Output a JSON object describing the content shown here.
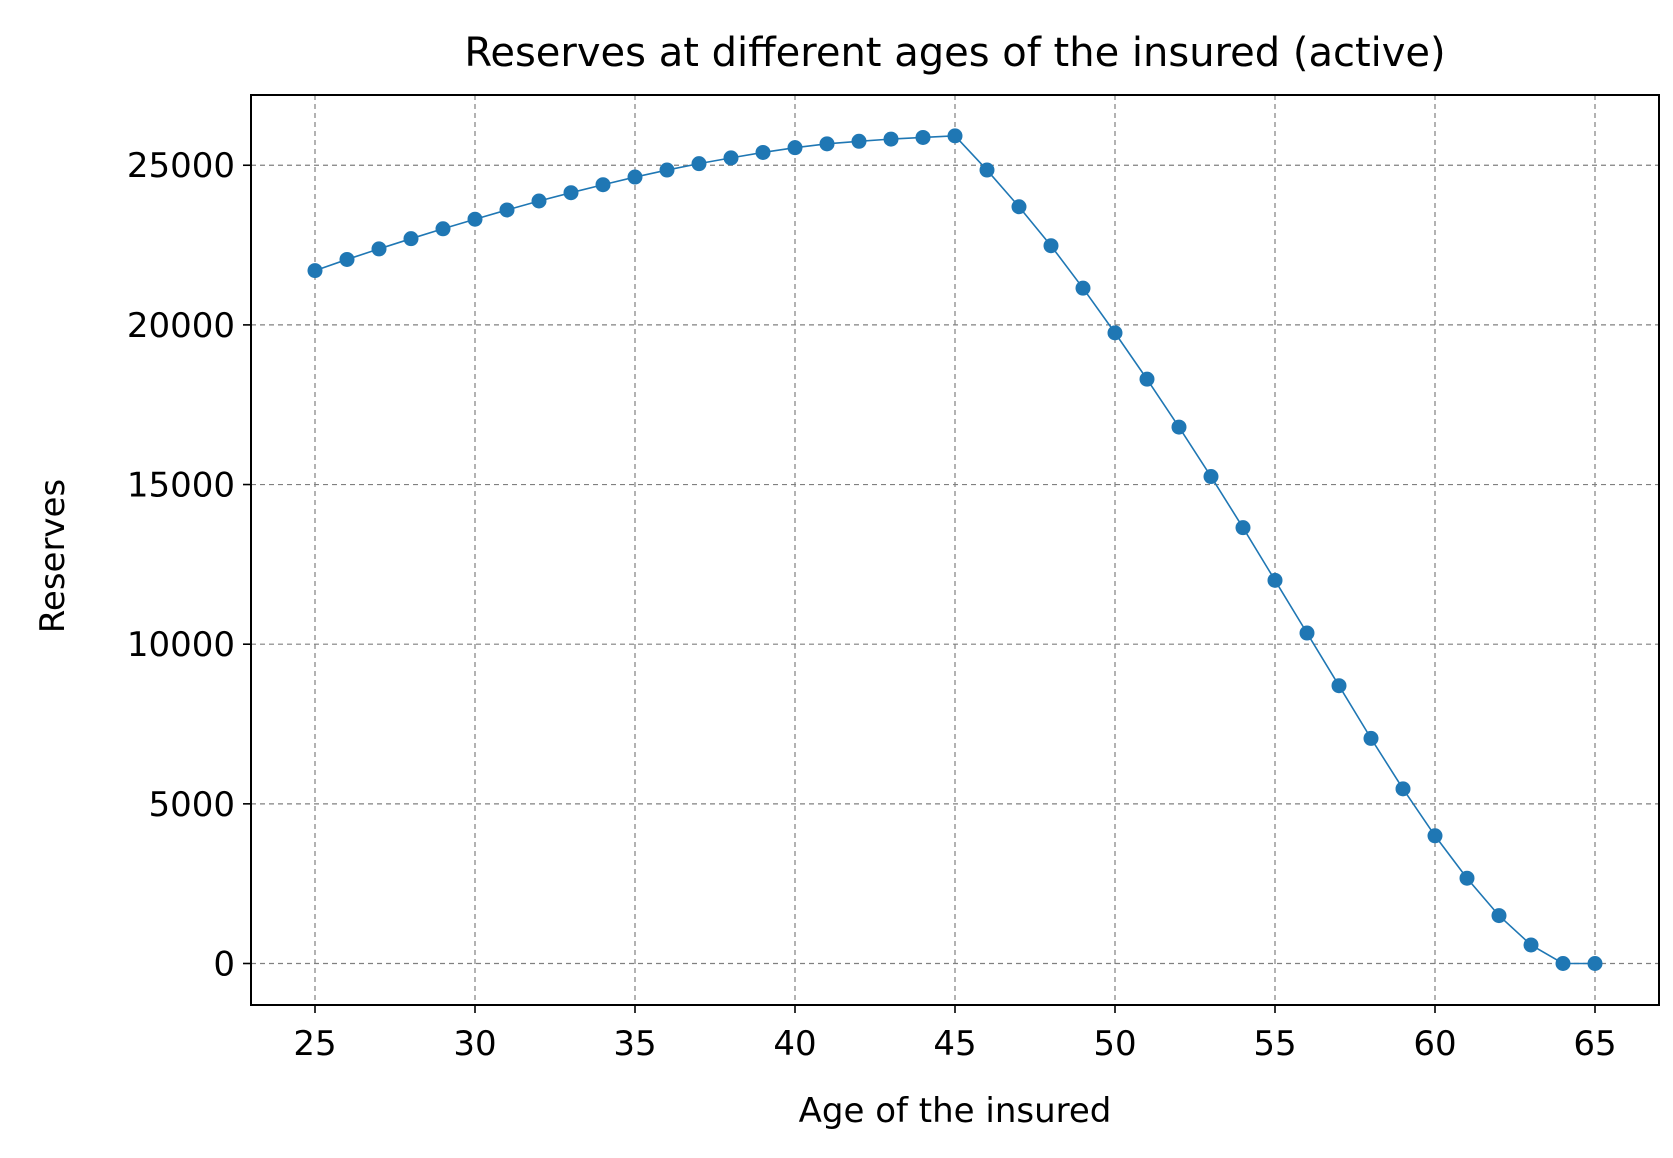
{
  "chart_data": {
    "type": "line",
    "title": "Reserves at different ages of the insured (active)",
    "xlabel": "Age of the insured",
    "ylabel": "Reserves",
    "xlim": [
      23,
      67
    ],
    "ylim": [
      -1300,
      27200
    ],
    "xticks": [
      25,
      30,
      35,
      40,
      45,
      50,
      55,
      60,
      65
    ],
    "yticks": [
      0,
      5000,
      10000,
      15000,
      20000,
      25000
    ],
    "xtick_labels": [
      "25",
      "30",
      "35",
      "40",
      "45",
      "50",
      "55",
      "60",
      "65"
    ],
    "ytick_labels": [
      "0",
      "5000",
      "10000",
      "15000",
      "20000",
      "25000"
    ],
    "grid": true,
    "series": [
      {
        "color": "#1f77b4",
        "marker": "circle",
        "x": [
          25,
          26,
          27,
          28,
          29,
          30,
          31,
          32,
          33,
          34,
          35,
          36,
          37,
          38,
          39,
          40,
          41,
          42,
          43,
          44,
          45,
          46,
          47,
          48,
          49,
          50,
          51,
          52,
          53,
          54,
          55,
          56,
          57,
          58,
          59,
          60,
          61,
          62,
          63,
          64,
          65
        ],
        "y": [
          21700,
          22050,
          22380,
          22700,
          23010,
          23310,
          23600,
          23880,
          24140,
          24390,
          24630,
          24850,
          25050,
          25230,
          25400,
          25550,
          25670,
          25750,
          25820,
          25870,
          25920,
          24850,
          23700,
          22480,
          21150,
          19750,
          18300,
          16800,
          15250,
          13650,
          12000,
          10350,
          8700,
          7050,
          5470,
          4000,
          2670,
          1500,
          580,
          0,
          0
        ]
      }
    ]
  }
}
